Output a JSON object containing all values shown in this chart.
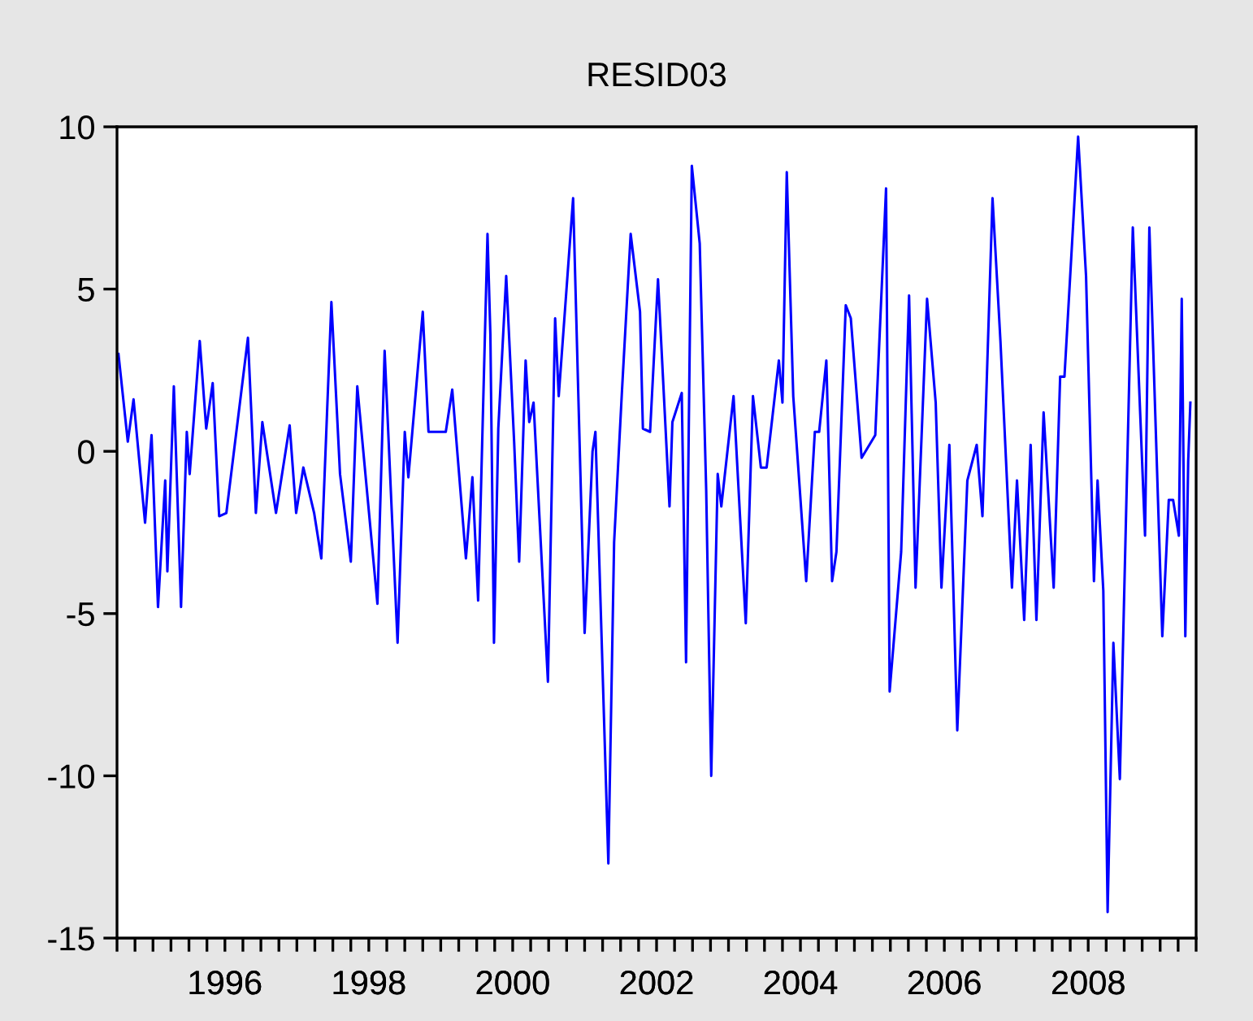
{
  "chart_data": {
    "type": "line",
    "title": "RESID03",
    "series": [
      {
        "color": "#0000ff",
        "x": [
          1995.02,
          1995.15,
          1995.23,
          1995.39,
          1995.48,
          1995.57,
          1995.67,
          1995.7,
          1995.79,
          1995.89,
          1995.97,
          1996.01,
          1996.15,
          1996.24,
          1996.33,
          1996.42,
          1996.52,
          1996.82,
          1996.93,
          1997.02,
          1997.21,
          1997.4,
          1997.49,
          1997.59,
          1997.74,
          1997.84,
          1997.98,
          1998.1,
          1998.25,
          1998.34,
          1998.62,
          1998.72,
          1998.9,
          1999.0,
          1999.05,
          1999.25,
          1999.33,
          1999.57,
          1999.66,
          1999.85,
          1999.94,
          2000.02,
          2000.15,
          2000.19,
          2000.24,
          2000.3,
          2000.41,
          2000.52,
          2000.59,
          2000.68,
          2000.73,
          2000.79,
          2000.99,
          2001.09,
          2001.14,
          2001.34,
          2001.5,
          2001.61,
          2001.65,
          2001.83,
          2001.91,
          2002.02,
          2002.14,
          2002.27,
          2002.31,
          2002.41,
          2002.52,
          2002.68,
          2002.72,
          2002.85,
          2002.91,
          2002.99,
          2003.1,
          2003.19,
          2003.26,
          2003.35,
          2003.4,
          2003.57,
          2003.74,
          2003.84,
          2003.95,
          2004.03,
          2004.2,
          2004.25,
          2004.31,
          2004.4,
          2004.58,
          2004.7,
          2004.76,
          2004.86,
          2004.94,
          2005.0,
          2005.13,
          2005.2,
          2005.35,
          2005.54,
          2005.69,
          2005.74,
          2005.9,
          2006.01,
          2006.1,
          2006.26,
          2006.38,
          2006.46,
          2006.57,
          2006.68,
          2006.82,
          2006.95,
          2007.03,
          2007.17,
          2007.28,
          2007.44,
          2007.51,
          2007.61,
          2007.7,
          2007.78,
          2007.88,
          2008.02,
          2008.11,
          2008.17,
          2008.36,
          2008.47,
          2008.58,
          2008.63,
          2008.71,
          2008.77,
          2008.85,
          2008.94,
          2009.12,
          2009.29,
          2009.35,
          2009.53,
          2009.62,
          2009.68,
          2009.76,
          2009.8,
          2009.85,
          2009.89,
          2009.92
        ],
        "values": [
          3.0,
          0.3,
          1.6,
          -2.2,
          0.5,
          -4.8,
          -0.9,
          -3.7,
          2.0,
          -4.8,
          0.6,
          -0.7,
          3.4,
          0.7,
          2.1,
          -2.0,
          -1.9,
          3.5,
          -1.9,
          0.9,
          -1.9,
          0.8,
          -1.9,
          -0.5,
          -1.9,
          -3.3,
          4.6,
          -0.7,
          -3.4,
          2.0,
          -4.7,
          3.1,
          -5.9,
          0.6,
          -0.8,
          4.3,
          0.6,
          0.6,
          1.9,
          -3.3,
          -0.8,
          -4.6,
          6.7,
          3.6,
          -5.9,
          0.7,
          5.4,
          0.3,
          -3.4,
          2.8,
          0.9,
          1.5,
          -7.1,
          4.1,
          1.7,
          7.8,
          -5.6,
          0.0,
          0.6,
          -12.7,
          -2.8,
          1.9,
          6.7,
          4.3,
          0.7,
          0.6,
          5.3,
          -1.7,
          0.9,
          1.8,
          -6.5,
          8.8,
          6.4,
          -1.2,
          -10.0,
          -0.7,
          -1.7,
          1.7,
          -5.3,
          1.7,
          -0.5,
          -0.5,
          2.8,
          1.5,
          8.6,
          1.7,
          -4.0,
          0.6,
          0.6,
          2.8,
          -4.0,
          -3.1,
          4.5,
          4.1,
          -0.2,
          0.5,
          8.1,
          -7.4,
          -3.1,
          4.8,
          -4.2,
          4.7,
          1.5,
          -4.2,
          0.2,
          -8.6,
          -0.9,
          0.2,
          -2.0,
          7.8,
          3.4,
          -4.2,
          -0.9,
          -5.2,
          0.2,
          -5.2,
          1.2,
          -4.2,
          2.3,
          2.3,
          9.7,
          5.4,
          -4.0,
          -0.9,
          -4.3,
          -14.2,
          -5.9,
          -10.1,
          6.9,
          -2.6,
          6.9,
          -5.7,
          -1.5,
          -1.5,
          -2.6,
          4.7,
          -5.7,
          -0.3,
          1.5
        ]
      }
    ],
    "xlim": [
      1995,
      2010
    ],
    "xticks": [
      {
        "value": 1995,
        "label": null
      },
      {
        "value": 1995.25,
        "label": null
      },
      {
        "value": 1995.5,
        "label": null
      },
      {
        "value": 1995.75,
        "label": null
      },
      {
        "value": 1996,
        "label": null
      },
      {
        "value": 1996.25,
        "label": null
      },
      {
        "value": 1996.5,
        "label": null
      },
      {
        "value": 1996.75,
        "label": null
      },
      {
        "value": 1997,
        "label": null
      },
      {
        "value": 1997.25,
        "label": null
      },
      {
        "value": 1997.5,
        "label": null
      },
      {
        "value": 1997.75,
        "label": null
      },
      {
        "value": 1998,
        "label": null
      },
      {
        "value": 1998.25,
        "label": null
      },
      {
        "value": 1998.5,
        "label": null
      },
      {
        "value": 1998.75,
        "label": null
      },
      {
        "value": 1999,
        "label": null
      },
      {
        "value": 1999.25,
        "label": null
      },
      {
        "value": 1999.5,
        "label": null
      },
      {
        "value": 1999.75,
        "label": null
      },
      {
        "value": 2000,
        "label": null
      },
      {
        "value": 2000.25,
        "label": null
      },
      {
        "value": 2000.5,
        "label": null
      },
      {
        "value": 2000.75,
        "label": null
      },
      {
        "value": 2001,
        "label": null
      },
      {
        "value": 2001.25,
        "label": null
      },
      {
        "value": 2001.5,
        "label": null
      },
      {
        "value": 2001.75,
        "label": null
      },
      {
        "value": 2002,
        "label": null
      },
      {
        "value": 2002.25,
        "label": null
      },
      {
        "value": 2002.5,
        "label": null
      },
      {
        "value": 2002.75,
        "label": null
      },
      {
        "value": 2003,
        "label": null
      },
      {
        "value": 2003.25,
        "label": null
      },
      {
        "value": 2003.5,
        "label": null
      },
      {
        "value": 2003.75,
        "label": null
      },
      {
        "value": 2004,
        "label": null
      },
      {
        "value": 2004.25,
        "label": null
      },
      {
        "value": 2004.5,
        "label": null
      },
      {
        "value": 2004.75,
        "label": null
      },
      {
        "value": 2005,
        "label": null
      },
      {
        "value": 2005.25,
        "label": null
      },
      {
        "value": 2005.5,
        "label": null
      },
      {
        "value": 2005.75,
        "label": null
      },
      {
        "value": 2006,
        "label": null
      },
      {
        "value": 2006.25,
        "label": null
      },
      {
        "value": 2006.5,
        "label": null
      },
      {
        "value": 2006.75,
        "label": null
      },
      {
        "value": 2007,
        "label": null
      },
      {
        "value": 2007.25,
        "label": null
      },
      {
        "value": 2007.5,
        "label": null
      },
      {
        "value": 2007.75,
        "label": null
      },
      {
        "value": 2008,
        "label": null
      },
      {
        "value": 2008.25,
        "label": null
      },
      {
        "value": 2008.5,
        "label": null
      },
      {
        "value": 2008.75,
        "label": null
      },
      {
        "value": 2009,
        "label": null
      },
      {
        "value": 2009.25,
        "label": null
      },
      {
        "value": 2009.5,
        "label": null
      },
      {
        "value": 2009.75,
        "label": null
      },
      {
        "value": 2010,
        "label": null
      },
      {
        "value": 1996.5,
        "label": "1996"
      },
      {
        "value": 1998.5,
        "label": "1998"
      },
      {
        "value": 2000.5,
        "label": "2000"
      },
      {
        "value": 2002.5,
        "label": "2002"
      },
      {
        "value": 2004.5,
        "label": "2004"
      },
      {
        "value": 2006.5,
        "label": "2006"
      },
      {
        "value": 2008.5,
        "label": "2008"
      }
    ],
    "ylim": [
      -15,
      10
    ],
    "yticks": [
      -15,
      -10,
      -5,
      0,
      5,
      10
    ],
    "grid": false,
    "legend": false,
    "marker": "none",
    "line_style": "solid"
  }
}
